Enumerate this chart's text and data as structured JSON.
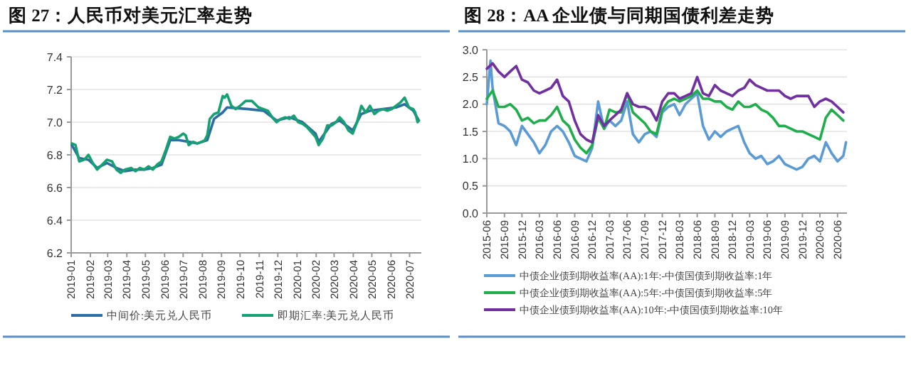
{
  "chart_data": [
    {
      "type": "line",
      "title": "图 27：人民币对美元汇率走势",
      "xlim": [
        "2019-01-01",
        "2020-07-20"
      ],
      "xticks": [
        "2019-01",
        "2019-02",
        "2019-03",
        "2019-04",
        "2019-05",
        "2019-06",
        "2019-07",
        "2019-08",
        "2019-09",
        "2019-10",
        "2019-11",
        "2019-12",
        "2020-01",
        "2020-02",
        "2020-03",
        "2020-04",
        "2020-05",
        "2020-06",
        "2020-07"
      ],
      "ylim": [
        6.2,
        7.4
      ],
      "yticks": [
        6.2,
        6.4,
        6.6,
        6.8,
        {
          "value": 7,
          "label": "7.0"
        },
        7.2,
        7.4
      ],
      "grid": "y",
      "legend": "bottom",
      "marker": "none",
      "line_style": "solid",
      "series": [
        {
          "name": "中间价:美元兑人民币",
          "color": "#2e6da4",
          "x": [
            "2019-01-02",
            "2019-01-14",
            "2019-01-29",
            "2019-02-12",
            "2019-02-28",
            "2019-03-15",
            "2019-03-29",
            "2019-04-15",
            "2019-04-29",
            "2019-05-13",
            "2019-05-27",
            "2019-06-10",
            "2019-06-24",
            "2019-07-10",
            "2019-07-24",
            "2019-08-09",
            "2019-08-20",
            "2019-09-03",
            "2019-09-10",
            "2019-10-15",
            "2019-11-08",
            "2019-11-29",
            "2019-12-20",
            "2020-01-10",
            "2020-01-31",
            "2020-02-05",
            "2020-02-26",
            "2020-03-10",
            "2020-03-31",
            "2020-04-14",
            "2020-04-28",
            "2020-05-19",
            "2020-06-09",
            "2020-06-23",
            "2020-07-07",
            "2020-07-16"
          ],
          "values": [
            6.86,
            6.78,
            6.77,
            6.72,
            6.75,
            6.72,
            6.7,
            6.71,
            6.71,
            6.72,
            6.74,
            6.89,
            6.89,
            6.88,
            6.87,
            6.89,
            7.02,
            7.06,
            7.09,
            7.08,
            7.07,
            7.01,
            7.03,
            7.0,
            6.93,
            6.88,
            6.99,
            7.01,
            6.95,
            7.05,
            7.07,
            7.08,
            7.09,
            7.11,
            7.07,
            7.01
          ]
        },
        {
          "name": "即期汇率:美元兑人民币",
          "color": "#16a173",
          "x": [
            "2019-01-02",
            "2019-01-08",
            "2019-01-14",
            "2019-01-22",
            "2019-01-29",
            "2019-02-05",
            "2019-02-12",
            "2019-02-20",
            "2019-02-28",
            "2019-03-08",
            "2019-03-15",
            "2019-03-22",
            "2019-03-29",
            "2019-04-08",
            "2019-04-15",
            "2019-04-22",
            "2019-04-29",
            "2019-05-06",
            "2019-05-13",
            "2019-05-20",
            "2019-05-27",
            "2019-06-03",
            "2019-06-10",
            "2019-06-17",
            "2019-06-24",
            "2019-07-01",
            "2019-07-05",
            "2019-07-10",
            "2019-07-17",
            "2019-07-24",
            "2019-07-31",
            "2019-08-05",
            "2019-08-09",
            "2019-08-13",
            "2019-08-20",
            "2019-08-27",
            "2019-09-03",
            "2019-09-06",
            "2019-09-10",
            "2019-09-17",
            "2019-09-24",
            "2019-10-01",
            "2019-10-10",
            "2019-10-20",
            "2019-10-31",
            "2019-11-08",
            "2019-11-15",
            "2019-11-22",
            "2019-11-29",
            "2019-12-06",
            "2019-12-13",
            "2019-12-20",
            "2019-12-27",
            "2020-01-03",
            "2020-01-10",
            "2020-01-17",
            "2020-01-24",
            "2020-01-31",
            "2020-02-05",
            "2020-02-12",
            "2020-02-19",
            "2020-02-26",
            "2020-03-04",
            "2020-03-10",
            "2020-03-17",
            "2020-03-24",
            "2020-03-31",
            "2020-04-07",
            "2020-04-14",
            "2020-04-21",
            "2020-04-28",
            "2020-05-05",
            "2020-05-12",
            "2020-05-19",
            "2020-05-26",
            "2020-06-02",
            "2020-06-09",
            "2020-06-16",
            "2020-06-23",
            "2020-06-30",
            "2020-07-07",
            "2020-07-10",
            "2020-07-14",
            "2020-07-16"
          ],
          "values": [
            6.87,
            6.86,
            6.76,
            6.77,
            6.8,
            6.75,
            6.71,
            6.74,
            6.77,
            6.76,
            6.71,
            6.69,
            6.71,
            6.72,
            6.7,
            6.72,
            6.71,
            6.73,
            6.71,
            6.74,
            6.76,
            6.83,
            6.91,
            6.9,
            6.91,
            6.93,
            6.92,
            6.86,
            6.88,
            6.87,
            6.88,
            6.89,
            6.92,
            7.02,
            7.05,
            7.06,
            7.16,
            7.15,
            7.17,
            7.1,
            7.08,
            7.1,
            7.13,
            7.13,
            7.09,
            7.08,
            7.07,
            7.03,
            7.0,
            7.02,
            7.03,
            7.02,
            7.04,
            7.0,
            6.99,
            6.97,
            6.94,
            6.91,
            6.86,
            6.9,
            6.98,
            6.98,
            7.0,
            7.03,
            7.0,
            6.95,
            6.93,
            7.0,
            7.1,
            7.06,
            7.1,
            7.05,
            7.07,
            7.08,
            7.07,
            7.08,
            7.1,
            7.12,
            7.15,
            7.09,
            7.08,
            7.06,
            7.0,
            7.01
          ]
        }
      ]
    },
    {
      "type": "line",
      "title": "图 28：AA 企业债与同期国债利差走势",
      "xlim": [
        "2015-06-01",
        "2020-07-20"
      ],
      "xticks": [
        "2015-06",
        "2015-09",
        "2015-12",
        "2016-03",
        "2016-06",
        "2016-09",
        "2016-12",
        "2017-03",
        "2017-06",
        "2017-09",
        "2017-12",
        "2018-03",
        "2018-06",
        "2018-09",
        "2018-12",
        "2019-03",
        "2019-06",
        "2019-09",
        "2019-12",
        "2020-03",
        "2020-06"
      ],
      "ylim": [
        0,
        3
      ],
      "yticks": [
        {
          "value": 0,
          "label": "0.0"
        },
        0.5,
        {
          "value": 1,
          "label": "1.0"
        },
        1.5,
        {
          "value": 2,
          "label": "2.0"
        },
        2.5,
        {
          "value": 3,
          "label": "3.0"
        }
      ],
      "grid": "y",
      "legend": "bottom",
      "marker": "none",
      "line_style": "solid",
      "series": [
        {
          "name": "中债企业债到期收益率(AA):1年:-中债国债到期收益率:1年",
          "color": "#5b9bd5",
          "x": [
            "2015-06",
            "2015-06-20",
            "2015-07",
            "2015-08",
            "2015-09",
            "2015-10",
            "2015-11",
            "2015-12",
            "2016-01",
            "2016-02",
            "2016-03",
            "2016-04",
            "2016-05",
            "2016-06",
            "2016-07",
            "2016-08",
            "2016-09",
            "2016-10",
            "2016-11",
            "2016-12",
            "2017-01",
            "2017-02",
            "2017-03",
            "2017-04",
            "2017-05",
            "2017-06",
            "2017-07",
            "2017-08",
            "2017-09",
            "2017-10",
            "2017-11",
            "2017-12",
            "2018-01",
            "2018-02",
            "2018-03",
            "2018-04",
            "2018-05",
            "2018-06",
            "2018-07",
            "2018-08",
            "2018-09",
            "2018-10",
            "2018-11",
            "2018-12",
            "2019-01",
            "2019-02",
            "2019-03",
            "2019-04",
            "2019-05",
            "2019-06",
            "2019-07",
            "2019-08",
            "2019-09",
            "2019-10",
            "2019-11",
            "2019-12",
            "2020-01",
            "2020-02",
            "2020-03",
            "2020-04",
            "2020-05",
            "2020-06",
            "2020-07",
            "2020-07-15"
          ],
          "values": [
            2.0,
            2.8,
            2.3,
            1.65,
            1.6,
            1.5,
            1.25,
            1.6,
            1.45,
            1.3,
            1.1,
            1.25,
            1.5,
            1.6,
            1.5,
            1.3,
            1.05,
            1.0,
            0.95,
            1.2,
            2.05,
            1.55,
            1.7,
            1.6,
            1.7,
            2.05,
            1.45,
            1.3,
            1.45,
            1.5,
            1.4,
            1.85,
            1.95,
            2.0,
            1.8,
            2.0,
            2.1,
            2.2,
            1.6,
            1.35,
            1.5,
            1.4,
            1.5,
            1.55,
            1.6,
            1.3,
            1.1,
            1.0,
            1.05,
            0.9,
            0.95,
            1.05,
            0.9,
            0.85,
            0.8,
            0.85,
            1.0,
            1.05,
            0.95,
            1.3,
            1.1,
            0.95,
            1.05,
            1.3
          ]
        },
        {
          "name": "中债企业债到期收益率(AA):5年:-中债国债到期收益率:5年",
          "color": "#1fae4b",
          "x": [
            "2015-06",
            "2015-07",
            "2015-08",
            "2015-09",
            "2015-10",
            "2015-11",
            "2015-12",
            "2016-01",
            "2016-02",
            "2016-03",
            "2016-04",
            "2016-05",
            "2016-06",
            "2016-07",
            "2016-08",
            "2016-09",
            "2016-10",
            "2016-11",
            "2016-12",
            "2017-01",
            "2017-02",
            "2017-03",
            "2017-04",
            "2017-05",
            "2017-06",
            "2017-07",
            "2017-08",
            "2017-09",
            "2017-10",
            "2017-11",
            "2017-12",
            "2018-01",
            "2018-02",
            "2018-03",
            "2018-04",
            "2018-05",
            "2018-06",
            "2018-07",
            "2018-08",
            "2018-09",
            "2018-10",
            "2018-11",
            "2018-12",
            "2019-01",
            "2019-02",
            "2019-03",
            "2019-04",
            "2019-05",
            "2019-06",
            "2019-07",
            "2019-08",
            "2019-09",
            "2019-10",
            "2019-11",
            "2019-12",
            "2020-01",
            "2020-02",
            "2020-03",
            "2020-04",
            "2020-05",
            "2020-06",
            "2020-07"
          ],
          "values": [
            2.1,
            2.25,
            1.95,
            1.95,
            2.0,
            1.9,
            1.7,
            1.75,
            1.65,
            1.7,
            1.7,
            1.8,
            1.95,
            1.7,
            1.6,
            1.35,
            1.2,
            1.1,
            1.25,
            1.75,
            1.55,
            1.9,
            1.85,
            1.85,
            2.2,
            1.85,
            1.75,
            1.65,
            1.5,
            1.45,
            1.9,
            2.05,
            2.1,
            2.05,
            2.1,
            2.15,
            2.25,
            2.1,
            2.1,
            2.05,
            2.05,
            1.95,
            1.9,
            2.05,
            1.95,
            1.95,
            2.0,
            1.9,
            1.85,
            1.75,
            1.6,
            1.6,
            1.55,
            1.5,
            1.5,
            1.45,
            1.4,
            1.35,
            1.75,
            1.9,
            1.8,
            1.7
          ]
        },
        {
          "name": "中债企业债到期收益率(AA):10年:-中债国债到期收益率:10年",
          "color": "#7030a0",
          "x": [
            "2015-06",
            "2015-07",
            "2015-08",
            "2015-09",
            "2015-10",
            "2015-11",
            "2015-12",
            "2016-01",
            "2016-02",
            "2016-03",
            "2016-04",
            "2016-05",
            "2016-06",
            "2016-07",
            "2016-08",
            "2016-09",
            "2016-10",
            "2016-11",
            "2016-12",
            "2017-01",
            "2017-02",
            "2017-03",
            "2017-04",
            "2017-05",
            "2017-06",
            "2017-07",
            "2017-08",
            "2017-09",
            "2017-10",
            "2017-11",
            "2017-12",
            "2018-01",
            "2018-02",
            "2018-03",
            "2018-04",
            "2018-05",
            "2018-06",
            "2018-07",
            "2018-08",
            "2018-09",
            "2018-10",
            "2018-11",
            "2018-12",
            "2019-01",
            "2019-02",
            "2019-03",
            "2019-04",
            "2019-05",
            "2019-06",
            "2019-07",
            "2019-08",
            "2019-09",
            "2019-10",
            "2019-11",
            "2019-12",
            "2020-01",
            "2020-02",
            "2020-03",
            "2020-04",
            "2020-05",
            "2020-06",
            "2020-07"
          ],
          "values": [
            2.65,
            2.75,
            2.6,
            2.5,
            2.6,
            2.7,
            2.45,
            2.4,
            2.25,
            2.2,
            2.25,
            2.3,
            2.45,
            2.15,
            2.05,
            1.7,
            1.45,
            1.35,
            1.3,
            1.8,
            1.6,
            1.7,
            1.8,
            1.9,
            2.2,
            2.0,
            1.95,
            1.95,
            1.9,
            1.7,
            2.05,
            2.2,
            2.2,
            2.1,
            2.15,
            2.2,
            2.5,
            2.2,
            2.15,
            2.35,
            2.25,
            2.2,
            2.15,
            2.25,
            2.3,
            2.45,
            2.35,
            2.3,
            2.25,
            2.25,
            2.25,
            2.15,
            2.1,
            2.15,
            2.15,
            2.15,
            1.95,
            2.05,
            2.1,
            2.05,
            1.95,
            1.85
          ]
        }
      ]
    }
  ]
}
